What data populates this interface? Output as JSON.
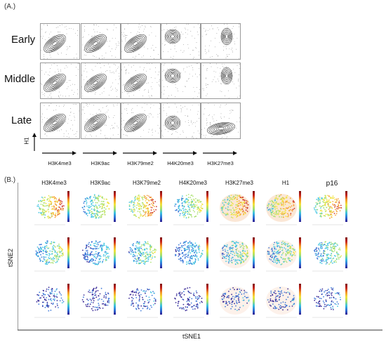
{
  "panel_a": {
    "label": "(A.)",
    "rows": [
      "Early",
      "Middle",
      "Late"
    ],
    "columns": [
      "H3K4me3",
      "H3K9ac",
      "H3K79me2",
      "H4K20me3",
      "H3K27me3"
    ],
    "y_axis_label": "H1"
  },
  "panel_b": {
    "label": "(B.)",
    "columns": [
      "H3K4me3",
      "H3K9ac",
      "H3K79me2",
      "H4K20me3",
      "H3K27me3",
      "H1",
      "p16"
    ],
    "x_axis_label": "tSNE1",
    "y_axis_label": "tSNE2",
    "colormap": [
      "#2b1b8f",
      "#2f6fd6",
      "#39c2e0",
      "#a7e06a",
      "#f2e23a",
      "#f59a2a",
      "#c7241c",
      "#7a0f0f"
    ]
  }
}
